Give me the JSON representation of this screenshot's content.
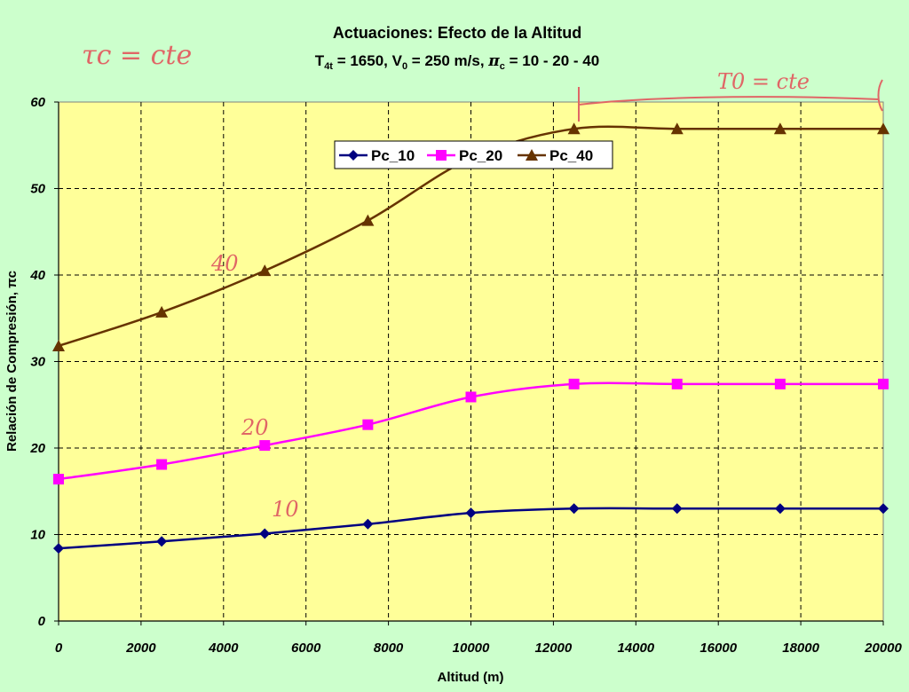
{
  "chart_data": {
    "type": "line",
    "title": "Actuaciones: Efecto de la Altitud",
    "subtitle": {
      "t_main": "T",
      "t_sub": "4t",
      "part1": " = 1650, V",
      "v_sub": "0",
      "part2": " = 250 m/s, ",
      "pi": "π",
      "pi_sub": "c",
      "part3": " = 10 - 20 - 40"
    },
    "xlabel": "Altitud (m)",
    "ylabel": "Relación de Compresión, πc",
    "xlim": [
      0,
      20000
    ],
    "ylim": [
      0,
      60
    ],
    "x_ticks": [
      "0",
      "2000",
      "4000",
      "6000",
      "8000",
      "10000",
      "12000",
      "14000",
      "16000",
      "18000",
      "20000"
    ],
    "y_ticks": [
      "0",
      "10",
      "20",
      "30",
      "40",
      "50",
      "60"
    ],
    "x": [
      0,
      2500,
      5000,
      7500,
      10000,
      12500,
      15000,
      17500,
      20000
    ],
    "grid": true,
    "legend_position": "top-center",
    "plot_background": "#ffff99",
    "series": [
      {
        "name": "Pc_10",
        "color": "#000080",
        "marker": "diamond",
        "values": [
          8.4,
          9.2,
          10.1,
          11.2,
          12.5,
          13.0,
          13.0,
          13.0,
          13.0
        ]
      },
      {
        "name": "Pc_20",
        "color": "#ff00ff",
        "marker": "square",
        "values": [
          16.4,
          18.1,
          20.3,
          22.7,
          25.9,
          27.4,
          27.4,
          27.4,
          27.4
        ]
      },
      {
        "name": "Pc_40",
        "color": "#663300",
        "marker": "triangle",
        "values": [
          31.8,
          35.7,
          40.5,
          46.3,
          53.5,
          56.9,
          56.9,
          56.9,
          56.9
        ]
      }
    ],
    "annotations": {
      "tau": "τc = cte",
      "t0": "T0 = cte",
      "l40": "40",
      "l20": "20",
      "l10": "10"
    }
  }
}
